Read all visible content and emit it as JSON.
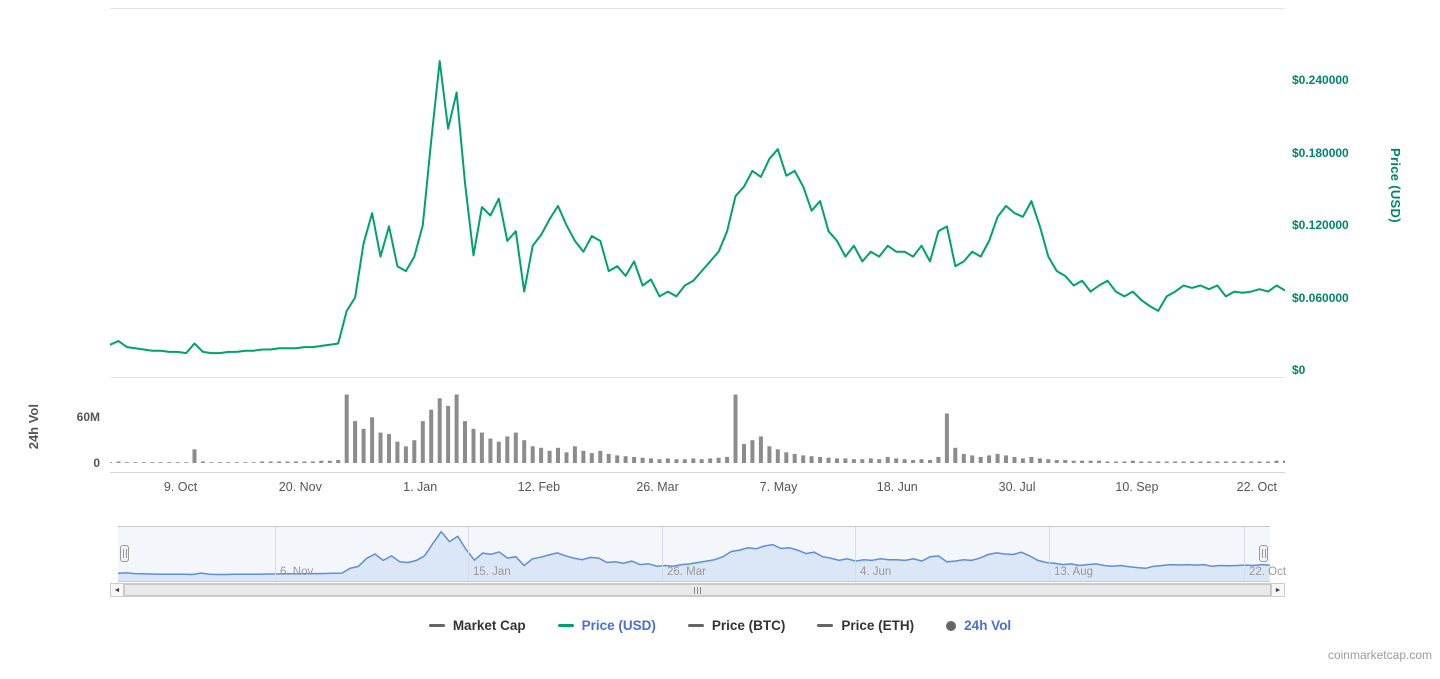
{
  "watermark": "coinmarketcap.com",
  "scrollbar": {
    "left_arrow": "◄",
    "right_arrow": "►"
  },
  "legend": {
    "items": [
      {
        "label": "Market Cap",
        "marker": "dash",
        "marker_color": "#666666",
        "text_color": "#333333"
      },
      {
        "label": "Price (USD)",
        "marker": "dash",
        "marker_color": "#00a170",
        "text_color": "#4a6dd9"
      },
      {
        "label": "Price (BTC)",
        "marker": "dash",
        "marker_color": "#666666",
        "text_color": "#333333"
      },
      {
        "label": "Price (ETH)",
        "marker": "dash",
        "marker_color": "#666666",
        "text_color": "#333333"
      },
      {
        "label": "24h Vol",
        "marker": "circle",
        "marker_color": "#666666",
        "text_color": "#4a6dd9"
      }
    ]
  },
  "chart_data": {
    "type": "line",
    "title": "",
    "x_ticks": [
      {
        "label": "9. Oct",
        "pos": 0.06
      },
      {
        "label": "20. Nov",
        "pos": 0.162
      },
      {
        "label": "1. Jan",
        "pos": 0.264
      },
      {
        "label": "12. Feb",
        "pos": 0.365
      },
      {
        "label": "26. Mar",
        "pos": 0.466
      },
      {
        "label": "7. May",
        "pos": 0.569
      },
      {
        "label": "18. Jun",
        "pos": 0.67
      },
      {
        "label": "30. Jul",
        "pos": 0.772
      },
      {
        "label": "10. Sep",
        "pos": 0.874
      },
      {
        "label": "22. Oct",
        "pos": 0.976
      }
    ],
    "price_axis": {
      "label": "Price (USD)",
      "range": [
        0,
        0.3
      ],
      "ticks": [
        {
          "label": "$0.240000",
          "value": 0.24
        },
        {
          "label": "$0.180000",
          "value": 0.18
        },
        {
          "label": "$0.120000",
          "value": 0.12
        },
        {
          "label": "$0.060000",
          "value": 0.06
        },
        {
          "label": "$0",
          "value": 0
        }
      ]
    },
    "volume_axis": {
      "label": "24h Vol",
      "range": [
        0,
        113
      ],
      "ticks": [
        {
          "label": "60M",
          "value": 60
        },
        {
          "label": "0",
          "value": 0
        }
      ]
    },
    "series": [
      {
        "name": "Price (USD)",
        "type": "line",
        "color": "#00a170",
        "values": [
          0.021,
          0.024,
          0.019,
          0.018,
          0.017,
          0.016,
          0.016,
          0.015,
          0.015,
          0.014,
          0.022,
          0.015,
          0.014,
          0.014,
          0.015,
          0.015,
          0.016,
          0.016,
          0.017,
          0.017,
          0.018,
          0.018,
          0.018,
          0.019,
          0.019,
          0.02,
          0.021,
          0.022,
          0.049,
          0.06,
          0.105,
          0.13,
          0.094,
          0.119,
          0.086,
          0.082,
          0.094,
          0.12,
          0.19,
          0.256,
          0.2,
          0.23,
          0.155,
          0.095,
          0.135,
          0.128,
          0.142,
          0.107,
          0.115,
          0.065,
          0.103,
          0.112,
          0.125,
          0.136,
          0.12,
          0.107,
          0.098,
          0.111,
          0.107,
          0.082,
          0.086,
          0.078,
          0.09,
          0.07,
          0.075,
          0.061,
          0.065,
          0.061,
          0.07,
          0.074,
          0.082,
          0.09,
          0.098,
          0.115,
          0.144,
          0.152,
          0.165,
          0.16,
          0.175,
          0.183,
          0.161,
          0.165,
          0.152,
          0.132,
          0.14,
          0.115,
          0.107,
          0.094,
          0.103,
          0.09,
          0.098,
          0.094,
          0.103,
          0.098,
          0.098,
          0.094,
          0.103,
          0.09,
          0.115,
          0.119,
          0.086,
          0.09,
          0.098,
          0.094,
          0.107,
          0.127,
          0.136,
          0.13,
          0.127,
          0.14,
          0.119,
          0.094,
          0.082,
          0.078,
          0.07,
          0.074,
          0.065,
          0.07,
          0.074,
          0.065,
          0.061,
          0.065,
          0.058,
          0.053,
          0.049,
          0.061,
          0.065,
          0.07,
          0.068,
          0.07,
          0.067,
          0.07,
          0.061,
          0.065,
          0.064,
          0.065,
          0.067,
          0.065,
          0.07,
          0.066
        ]
      },
      {
        "name": "24h Vol",
        "type": "bar",
        "color": "#8c8c8c",
        "unit": "M",
        "values": [
          1,
          2,
          1,
          1,
          1,
          1,
          1,
          1,
          1,
          1,
          18,
          2,
          1,
          1,
          1,
          1,
          1,
          1,
          2,
          2,
          2,
          2,
          2,
          2,
          2,
          3,
          3,
          4,
          90,
          55,
          45,
          60,
          40,
          38,
          28,
          22,
          30,
          55,
          70,
          85,
          75,
          90,
          55,
          45,
          40,
          32,
          28,
          35,
          40,
          30,
          22,
          20,
          16,
          20,
          14,
          22,
          16,
          13,
          16,
          12,
          10,
          9,
          8,
          7,
          6,
          5,
          6,
          5,
          5,
          6,
          5,
          6,
          7,
          8,
          90,
          25,
          30,
          35,
          22,
          18,
          14,
          12,
          10,
          9,
          8,
          7,
          6,
          6,
          5,
          5,
          6,
          5,
          8,
          6,
          5,
          4,
          5,
          4,
          8,
          65,
          20,
          12,
          10,
          8,
          10,
          12,
          10,
          8,
          6,
          8,
          6,
          5,
          4,
          4,
          3,
          3,
          3,
          3,
          2,
          2,
          2,
          3,
          2,
          2,
          2,
          2,
          2,
          2,
          2,
          2,
          2,
          2,
          2,
          2,
          2,
          2,
          2,
          2,
          3,
          3
        ]
      }
    ],
    "navigator": {
      "series_ref": 0,
      "line_color": "#5f8ed8",
      "fill_color": "#dbe6f6",
      "range": [
        0,
        0.26
      ],
      "ticks": [
        {
          "label": "6. Nov",
          "pos": 0.136
        },
        {
          "label": "15. Jan",
          "pos": 0.304
        },
        {
          "label": "26. Mar",
          "pos": 0.472
        },
        {
          "label": "4. Jun",
          "pos": 0.64
        },
        {
          "label": "13. Aug",
          "pos": 0.808
        },
        {
          "label": "22. Oct",
          "pos": 0.977
        }
      ]
    }
  }
}
